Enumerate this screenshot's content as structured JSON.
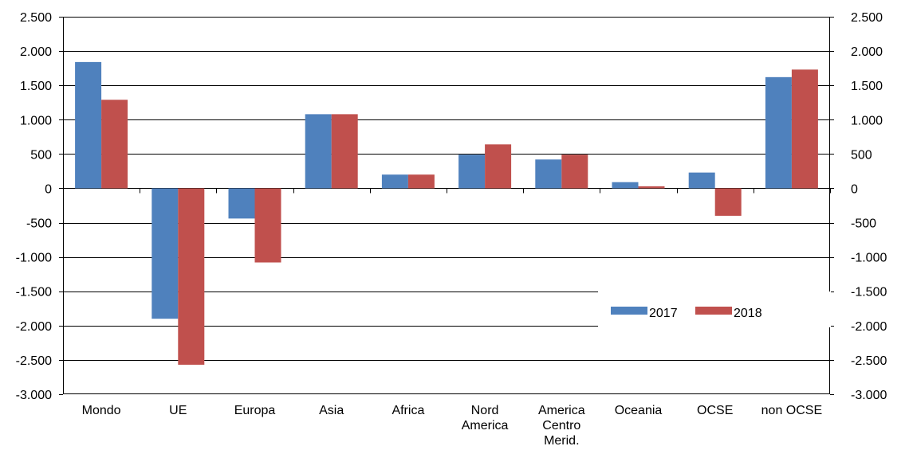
{
  "chart_data": {
    "type": "bar",
    "title": "",
    "xlabel": "",
    "ylabel": "",
    "ylim": [
      -3000,
      2500
    ],
    "y_ticks": [
      -3000,
      -2500,
      -2000,
      -1500,
      -1000,
      -500,
      0,
      500,
      1000,
      1500,
      2000,
      2500
    ],
    "y_tick_labels": [
      "-3.000",
      "-2.500",
      "-2.000",
      "-1.500",
      "-1.000",
      "-500",
      "0",
      "500",
      "1.000",
      "1.500",
      "2.000",
      "2.500"
    ],
    "dual_y_axis": true,
    "grid": true,
    "legend_position": "center-right",
    "categories": [
      [
        "Mondo"
      ],
      [
        "UE"
      ],
      [
        "Europa"
      ],
      [
        "Asia"
      ],
      [
        "Africa"
      ],
      [
        "Nord",
        "America"
      ],
      [
        "America",
        "Centro",
        "Merid."
      ],
      [
        "Oceania"
      ],
      [
        "OCSE"
      ],
      [
        "non OCSE"
      ]
    ],
    "series": [
      {
        "name": "2017",
        "color": "#4f81bd",
        "values": [
          1840,
          -1900,
          -440,
          1080,
          200,
          490,
          420,
          90,
          230,
          1620
        ]
      },
      {
        "name": "2018",
        "color": "#c0504d",
        "values": [
          1290,
          -2570,
          -1080,
          1080,
          200,
          640,
          490,
          30,
          -400,
          1730
        ]
      }
    ]
  }
}
